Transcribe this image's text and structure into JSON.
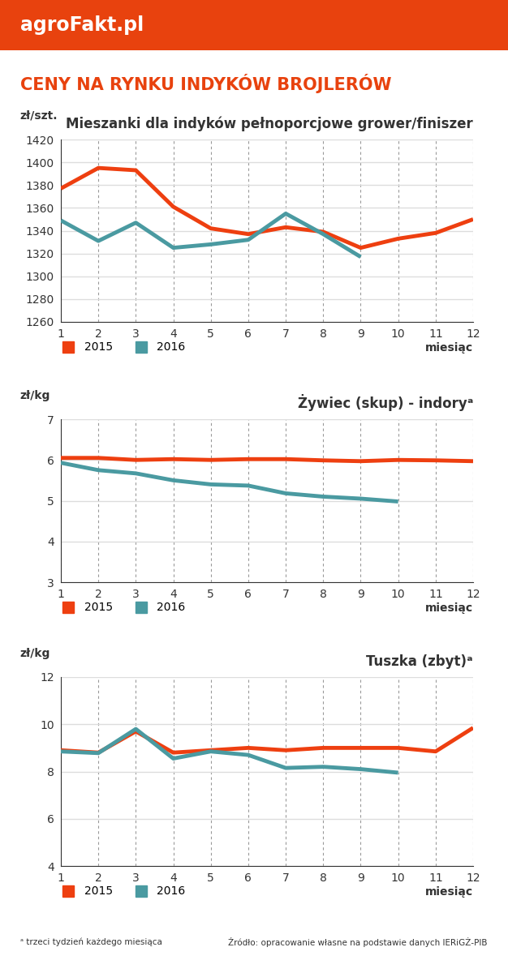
{
  "header": {
    "logo": "agroFakt.pl",
    "title": "CENY NA RYNKU INDYKÓW BROJLERÓW"
  },
  "chart_data": [
    {
      "type": "line",
      "title": "Mieszanki dla indyków pełnoporcjowe grower/finiszer",
      "y_label": "zł/szt.",
      "x_label": "miesiąc",
      "x": [
        1,
        2,
        3,
        4,
        5,
        6,
        7,
        8,
        9,
        10,
        11,
        12
      ],
      "xlim": [
        1,
        12
      ],
      "xticks": [
        1,
        2,
        3,
        4,
        5,
        6,
        7,
        8,
        9,
        10,
        11,
        12
      ],
      "ylim": [
        1260,
        1420
      ],
      "yticks": [
        1260,
        1280,
        1300,
        1320,
        1340,
        1360,
        1380,
        1400,
        1420
      ],
      "grid": true,
      "legend": "lower left",
      "series": [
        {
          "name": "2015",
          "color": "#ee3f10",
          "values": [
            1377,
            1395,
            1393,
            1361,
            1342,
            1337,
            1343,
            1339,
            1325,
            1333,
            1338,
            1350
          ]
        },
        {
          "name": "2016",
          "color": "#4a9aa1",
          "values": [
            1349,
            1331,
            1347,
            1325,
            1328,
            1332,
            1355,
            1337,
            1317,
            null,
            null,
            null
          ]
        }
      ]
    },
    {
      "type": "line",
      "title": "Żywiec (skup) - indoryᵃ",
      "y_label": "zł/kg",
      "x_label": "miesiąc",
      "x": [
        1,
        2,
        3,
        4,
        5,
        6,
        7,
        8,
        9,
        10,
        11,
        12
      ],
      "xlim": [
        1,
        12
      ],
      "xticks": [
        1,
        2,
        3,
        4,
        5,
        6,
        7,
        8,
        9,
        10,
        11,
        12
      ],
      "ylim": [
        3,
        7
      ],
      "yticks": [
        3,
        4,
        5,
        6,
        7
      ],
      "grid": true,
      "legend": "lower left",
      "series": [
        {
          "name": "2015",
          "color": "#ee3f10",
          "values": [
            6.05,
            6.05,
            6.0,
            6.02,
            6.0,
            6.02,
            6.02,
            5.99,
            5.97,
            6.0,
            5.99,
            5.97
          ]
        },
        {
          "name": "2016",
          "color": "#4a9aa1",
          "values": [
            5.93,
            5.75,
            5.67,
            5.5,
            5.4,
            5.37,
            5.18,
            5.1,
            5.05,
            4.98,
            null,
            null
          ]
        }
      ]
    },
    {
      "type": "line",
      "title": "Tuszka (zbyt)ᵃ",
      "y_label": "zł/kg",
      "x_label": "miesiąc",
      "x": [
        1,
        2,
        3,
        4,
        5,
        6,
        7,
        8,
        9,
        10,
        11,
        12
      ],
      "xlim": [
        1,
        12
      ],
      "xticks": [
        1,
        2,
        3,
        4,
        5,
        6,
        7,
        8,
        9,
        10,
        11,
        12
      ],
      "ylim": [
        4,
        12
      ],
      "yticks": [
        4,
        6,
        8,
        10,
        12
      ],
      "grid": true,
      "legend": "lower left",
      "series": [
        {
          "name": "2015",
          "color": "#ee3f10",
          "values": [
            8.9,
            8.8,
            9.7,
            8.8,
            8.9,
            9.0,
            8.9,
            9.0,
            9.0,
            9.0,
            8.85,
            9.85
          ]
        },
        {
          "name": "2016",
          "color": "#4a9aa1",
          "values": [
            8.85,
            8.78,
            9.8,
            8.55,
            8.85,
            8.7,
            8.15,
            8.2,
            8.1,
            7.95,
            null,
            null
          ]
        }
      ]
    }
  ],
  "footer": {
    "note": "ᵃ trzeci tydzień każdego miesiąca",
    "source": "Źródło: opracowanie własne na podstawie danych IERiGŻ-PIB"
  }
}
